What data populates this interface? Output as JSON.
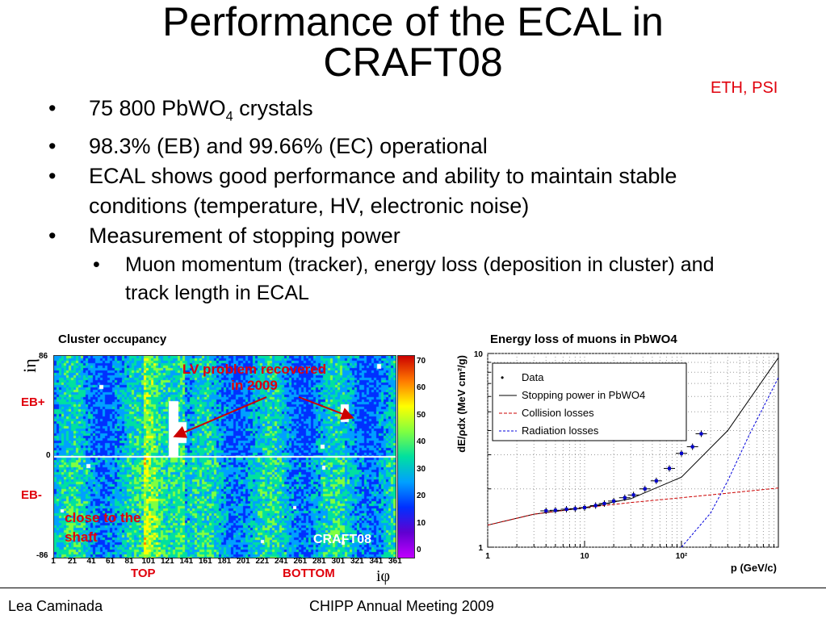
{
  "slide": {
    "title_line1": "Performance of the ECAL in",
    "title_line2": "CRAFT08",
    "affiliation": "ETH, PSI"
  },
  "bullets": {
    "b1_text": "75 800 PbWO",
    "b1_sub": "4",
    "b1_tail": " crystals",
    "b2": "98.3% (EB) and 99.66% (EC) operational",
    "b3": "ECAL shows good performance and ability to maintain stable conditions (temperature, HV, electronic noise)",
    "b4": "Measurement of stopping power",
    "b4_sub": "Muon momentum (tracker), energy loss (deposition in cluster) and track length in ECAL",
    "bullet_glyph": "•"
  },
  "occupancy": {
    "title": "Cluster occupancy",
    "y_axis_label": "iη",
    "x_axis_label": "iφ",
    "y_ticks": [
      "86",
      "0",
      "-86"
    ],
    "x_ticks": [
      "1",
      "21",
      "41",
      "61",
      "81",
      "101",
      "121",
      "141",
      "161",
      "181",
      "201",
      "221",
      "241",
      "261",
      "281",
      "301",
      "321",
      "341",
      "361"
    ],
    "colorbar_ticks": [
      "70",
      "60",
      "50",
      "40",
      "30",
      "20",
      "10",
      "0"
    ],
    "eb_plus": "EB+",
    "eb_minus": "EB-",
    "annotation_lv": "LV problem recovered in 2009",
    "annotation_shaft": "close to the shaft",
    "tag": "CRAFT08",
    "top_label": "TOP",
    "bottom_label": "BOTTOM"
  },
  "chart_data": {
    "type": "line",
    "title": "Energy loss of muons in PbWO4",
    "xlabel": "p (GeV/c)",
    "ylabel": "dE/ρdx (MeV cm²/g)",
    "x_scale": "log",
    "y_scale": "log",
    "xlim": [
      1,
      1000
    ],
    "ylim": [
      1,
      10
    ],
    "x_ticks": [
      "1",
      "10",
      "10²"
    ],
    "y_ticks": [
      "1",
      "10"
    ],
    "legend_entries": [
      "Data",
      "Stopping power in PbWO4",
      "Collision losses",
      "Radiation losses"
    ],
    "series": [
      {
        "name": "Data",
        "x": [
          4,
          5,
          6.5,
          8,
          10,
          13,
          16,
          20,
          26,
          32,
          42,
          55,
          75,
          100,
          130,
          160
        ],
        "y": [
          1.54,
          1.55,
          1.57,
          1.58,
          1.6,
          1.64,
          1.68,
          1.73,
          1.8,
          1.86,
          2.0,
          2.2,
          2.55,
          3.05,
          3.3,
          3.85
        ]
      },
      {
        "name": "Stopping power in PbWO4",
        "x": [
          1,
          3,
          10,
          30,
          100,
          300,
          1000
        ],
        "y": [
          1.3,
          1.48,
          1.6,
          1.78,
          2.3,
          4.0,
          9.5
        ]
      },
      {
        "name": "Collision losses",
        "x": [
          1,
          3,
          10,
          30,
          100,
          300,
          1000
        ],
        "y": [
          1.3,
          1.48,
          1.6,
          1.7,
          1.8,
          1.9,
          2.02
        ]
      },
      {
        "name": "Radiation losses",
        "x": [
          100,
          200,
          300,
          500,
          1000
        ],
        "y": [
          1.0,
          1.5,
          2.2,
          3.8,
          7.5
        ]
      }
    ],
    "colors": {
      "data": "#0000cc",
      "stopping": "#000000",
      "collision": "#cc0000",
      "radiation": "#0000dd"
    }
  },
  "footer": {
    "author": "Lea Caminada",
    "event": "CHIPP Annual Meeting 2009"
  }
}
